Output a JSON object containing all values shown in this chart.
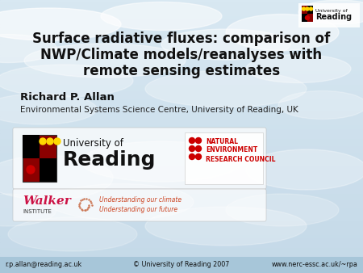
{
  "title_line1": "Surface radiative fluxes: comparison of",
  "title_line2": "NWP/Climate models/reanalyses with",
  "title_line3": "remote sensing estimates",
  "author": "Richard P. Allan",
  "affiliation": "Environmental Systems Science Centre, University of Reading, UK",
  "footer_left": "r.p.allan@reading.ac.uk",
  "footer_center": "© University of Reading 2007",
  "footer_right": "www.nerc-essc.ac.uk/~rpa",
  "title_color": "#111111",
  "author_color": "#111111",
  "affiliation_color": "#222222",
  "footer_color": "#111111",
  "nerc_text_color": "#cc0000",
  "walker_text_color": "#cc1144",
  "walker_tagline_color": "#cc4422"
}
